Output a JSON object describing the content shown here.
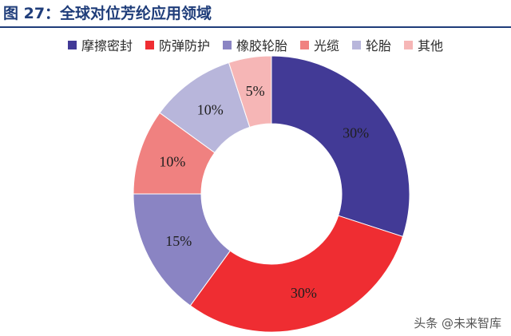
{
  "figure": {
    "title": "图 27：全球对位芳纶应用领域"
  },
  "chart_data": {
    "type": "pie",
    "donut": true,
    "categories": [
      "摩擦密封",
      "防弹防护",
      "橡胶轮胎",
      "光缆",
      "轮胎",
      "其他"
    ],
    "values": [
      30,
      30,
      15,
      10,
      10,
      5
    ],
    "labels": [
      "30%",
      "30%",
      "15%",
      "10%",
      "10%",
      "5%"
    ],
    "colors": [
      "#423a96",
      "#ef2d32",
      "#8a84c3",
      "#f08180",
      "#b8b6db",
      "#f6b6b6"
    ],
    "title": "",
    "legend_position": "top"
  },
  "watermark": {
    "text": "头条 @未来智库"
  }
}
